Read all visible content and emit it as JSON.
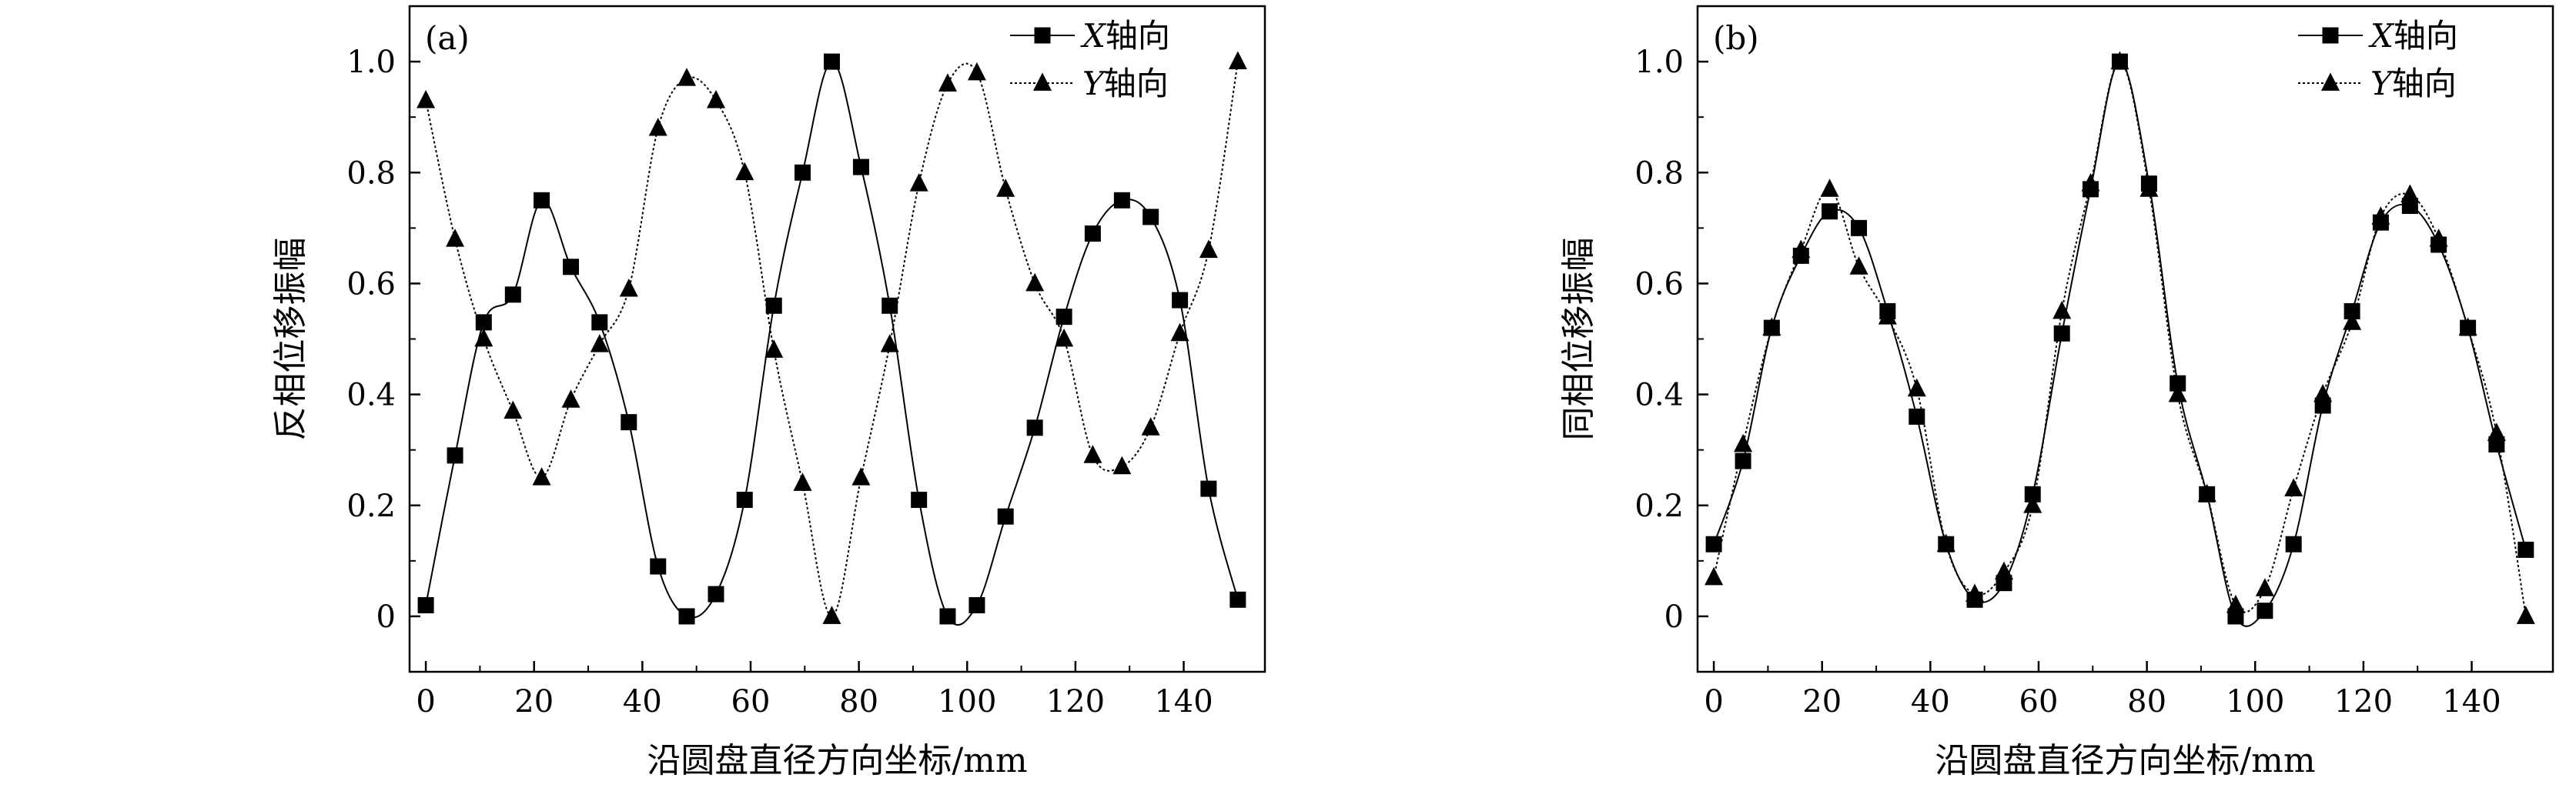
{
  "chart_data": [
    {
      "type": "line",
      "panel_label": "(a)",
      "xlabel": "沿圆盘直径方向坐标/mm",
      "ylabel": "反相位移振幅",
      "xlim": [
        -3,
        155
      ],
      "ylim": [
        -0.1,
        1.1
      ],
      "xticks": [
        0,
        20,
        40,
        60,
        80,
        100,
        120,
        140
      ],
      "xtick_labels": [
        "0",
        "20",
        "40",
        "60",
        "80",
        "100",
        "120",
        "140"
      ],
      "yticks": [
        0,
        0.2,
        0.4,
        0.6,
        0.8,
        1.0
      ],
      "ytick_labels": [
        "0",
        "0.2",
        "0.4",
        "0.6",
        "0.8",
        "1.0"
      ],
      "legend_position": "top-right",
      "series": [
        {
          "name": "X轴向",
          "name_var": "X",
          "name_rest": "轴向",
          "marker": "square",
          "line_style": "solid",
          "x": [
            0,
            5.4,
            10.7,
            16.1,
            21.4,
            26.8,
            32.1,
            37.5,
            42.9,
            48.2,
            53.6,
            58.9,
            64.3,
            69.6,
            75,
            80.4,
            85.7,
            91.1,
            96.4,
            101.8,
            107.1,
            112.5,
            117.9,
            123.2,
            128.6,
            133.9,
            139.3,
            144.6,
            150
          ],
          "y": [
            0.02,
            0.29,
            0.53,
            0.58,
            0.75,
            0.63,
            0.53,
            0.35,
            0.09,
            0.0,
            0.04,
            0.21,
            0.56,
            0.8,
            1.0,
            0.81,
            0.56,
            0.21,
            0.0,
            0.02,
            0.18,
            0.34,
            0.54,
            0.69,
            0.75,
            0.72,
            0.57,
            0.23,
            0.03
          ]
        },
        {
          "name": "Y轴向",
          "name_var": "Y",
          "name_rest": "轴向",
          "marker": "triangle",
          "line_style": "dotted",
          "x": [
            0,
            5.4,
            10.7,
            16.1,
            21.4,
            26.8,
            32.1,
            37.5,
            42.9,
            48.2,
            53.6,
            58.9,
            64.3,
            69.6,
            75,
            80.4,
            85.7,
            91.1,
            96.4,
            101.8,
            107.1,
            112.5,
            117.9,
            123.2,
            128.6,
            133.9,
            139.3,
            144.6,
            150
          ],
          "y": [
            0.93,
            0.68,
            0.5,
            0.37,
            0.25,
            0.39,
            0.49,
            0.59,
            0.88,
            0.97,
            0.93,
            0.8,
            0.48,
            0.24,
            0.0,
            0.25,
            0.49,
            0.78,
            0.96,
            0.98,
            0.77,
            0.6,
            0.5,
            0.29,
            0.27,
            0.34,
            0.51,
            0.66,
            1.0
          ]
        }
      ]
    },
    {
      "type": "line",
      "panel_label": "(b)",
      "xlabel": "沿圆盘直径方向坐标/mm",
      "ylabel": "同相位移振幅",
      "xlim": [
        -3,
        155
      ],
      "ylim": [
        -0.1,
        1.1
      ],
      "xticks": [
        0,
        20,
        40,
        60,
        80,
        100,
        120,
        140
      ],
      "xtick_labels": [
        "0",
        "20",
        "40",
        "60",
        "80",
        "100",
        "120",
        "140"
      ],
      "yticks": [
        0,
        0.2,
        0.4,
        0.6,
        0.8,
        1.0
      ],
      "ytick_labels": [
        "0",
        "0.2",
        "0.4",
        "0.6",
        "0.8",
        "1.0"
      ],
      "legend_position": "top-right",
      "series": [
        {
          "name": "X轴向",
          "name_var": "X",
          "name_rest": "轴向",
          "marker": "square",
          "line_style": "solid",
          "x": [
            0,
            5.4,
            10.7,
            16.1,
            21.4,
            26.8,
            32.1,
            37.5,
            42.9,
            48.2,
            53.6,
            58.9,
            64.3,
            69.6,
            75,
            80.4,
            85.7,
            91.1,
            96.4,
            101.8,
            107.1,
            112.5,
            117.9,
            123.2,
            128.6,
            133.9,
            139.3,
            144.6,
            150
          ],
          "y": [
            0.13,
            0.28,
            0.52,
            0.65,
            0.73,
            0.7,
            0.55,
            0.36,
            0.13,
            0.03,
            0.06,
            0.22,
            0.51,
            0.77,
            1.0,
            0.78,
            0.42,
            0.22,
            0.0,
            0.01,
            0.13,
            0.38,
            0.55,
            0.71,
            0.74,
            0.67,
            0.52,
            0.31,
            0.12
          ]
        },
        {
          "name": "Y轴向",
          "name_var": "Y",
          "name_rest": "轴向",
          "marker": "triangle",
          "line_style": "dotted",
          "x": [
            0,
            5.4,
            10.7,
            16.1,
            21.4,
            26.8,
            32.1,
            37.5,
            42.9,
            48.2,
            53.6,
            58.9,
            64.3,
            69.6,
            75,
            80.4,
            85.7,
            91.1,
            96.4,
            101.8,
            107.1,
            112.5,
            117.9,
            123.2,
            128.6,
            133.9,
            139.3,
            144.6,
            150
          ],
          "y": [
            0.07,
            0.31,
            0.52,
            0.66,
            0.77,
            0.63,
            0.54,
            0.41,
            0.13,
            0.04,
            0.08,
            0.2,
            0.55,
            0.78,
            1.0,
            0.77,
            0.4,
            0.22,
            0.02,
            0.05,
            0.23,
            0.4,
            0.53,
            0.72,
            0.76,
            0.68,
            0.52,
            0.33,
            0.0
          ]
        }
      ]
    }
  ]
}
